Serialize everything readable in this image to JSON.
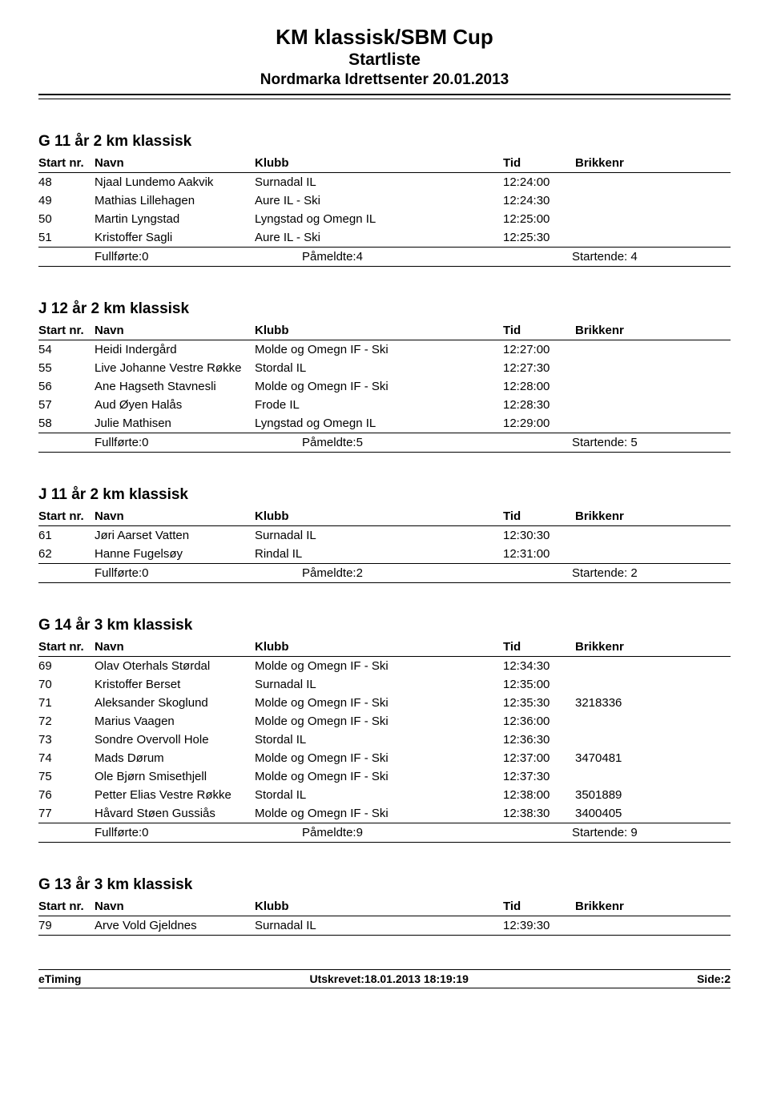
{
  "header": {
    "title1": "KM klassisk/SBM Cup",
    "title2": "Startliste",
    "title3": "Nordmarka Idrettsenter 20.01.2013"
  },
  "columns": {
    "start_nr": "Start nr.",
    "navn": "Navn",
    "klubb": "Klubb",
    "tid": "Tid",
    "brikkenr": "Brikkenr"
  },
  "summary_labels": {
    "fullforte": "Fullførte:",
    "pameldte": "Påmeldte:",
    "startende": "Startende:"
  },
  "sections": [
    {
      "title": "G 11 år 2 km klassisk",
      "rows": [
        {
          "nr": "48",
          "navn": "Njaal Lundemo Aakvik",
          "klubb": "Surnadal IL",
          "tid": "12:24:00",
          "brikkenr": ""
        },
        {
          "nr": "49",
          "navn": "Mathias Lillehagen",
          "klubb": "Aure IL - Ski",
          "tid": "12:24:30",
          "brikkenr": ""
        },
        {
          "nr": "50",
          "navn": "Martin Lyngstad",
          "klubb": "Lyngstad og Omegn IL",
          "tid": "12:25:00",
          "brikkenr": ""
        },
        {
          "nr": "51",
          "navn": "Kristoffer Sagli",
          "klubb": "Aure IL - Ski",
          "tid": "12:25:30",
          "brikkenr": ""
        }
      ],
      "summary": {
        "fullforte": "0",
        "pameldte": "4",
        "startende": "4"
      }
    },
    {
      "title": "J 12 år 2 km klassisk",
      "rows": [
        {
          "nr": "54",
          "navn": "Heidi Indergård",
          "klubb": "Molde og Omegn IF - Ski",
          "tid": "12:27:00",
          "brikkenr": ""
        },
        {
          "nr": "55",
          "navn": "Live Johanne Vestre Røkke",
          "klubb": "Stordal IL",
          "tid": "12:27:30",
          "brikkenr": ""
        },
        {
          "nr": "56",
          "navn": "Ane Hagseth Stavnesli",
          "klubb": "Molde og Omegn IF - Ski",
          "tid": "12:28:00",
          "brikkenr": ""
        },
        {
          "nr": "57",
          "navn": "Aud Øyen Halås",
          "klubb": "Frode IL",
          "tid": "12:28:30",
          "brikkenr": ""
        },
        {
          "nr": "58",
          "navn": "Julie Mathisen",
          "klubb": "Lyngstad og Omegn IL",
          "tid": "12:29:00",
          "brikkenr": ""
        }
      ],
      "summary": {
        "fullforte": "0",
        "pameldte": "5",
        "startende": "5"
      }
    },
    {
      "title": "J 11 år 2 km klassisk",
      "rows": [
        {
          "nr": "61",
          "navn": "Jøri Aarset Vatten",
          "klubb": "Surnadal IL",
          "tid": "12:30:30",
          "brikkenr": ""
        },
        {
          "nr": "62",
          "navn": "Hanne Fugelsøy",
          "klubb": "Rindal IL",
          "tid": "12:31:00",
          "brikkenr": ""
        }
      ],
      "summary": {
        "fullforte": "0",
        "pameldte": "2",
        "startende": "2"
      }
    },
    {
      "title": "G 14 år 3 km klassisk",
      "rows": [
        {
          "nr": "69",
          "navn": "Olav Oterhals Størdal",
          "klubb": "Molde og Omegn IF - Ski",
          "tid": "12:34:30",
          "brikkenr": ""
        },
        {
          "nr": "70",
          "navn": "Kristoffer Berset",
          "klubb": "Surnadal IL",
          "tid": "12:35:00",
          "brikkenr": ""
        },
        {
          "nr": "71",
          "navn": "Aleksander Skoglund",
          "klubb": "Molde og Omegn IF - Ski",
          "tid": "12:35:30",
          "brikkenr": "3218336"
        },
        {
          "nr": "72",
          "navn": "Marius Vaagen",
          "klubb": "Molde og Omegn IF - Ski",
          "tid": "12:36:00",
          "brikkenr": ""
        },
        {
          "nr": "73",
          "navn": "Sondre Overvoll Hole",
          "klubb": "Stordal IL",
          "tid": "12:36:30",
          "brikkenr": ""
        },
        {
          "nr": "74",
          "navn": "Mads Dørum",
          "klubb": "Molde og Omegn IF - Ski",
          "tid": "12:37:00",
          "brikkenr": "3470481"
        },
        {
          "nr": "75",
          "navn": "Ole Bjørn Smisethjell",
          "klubb": "Molde og Omegn IF - Ski",
          "tid": "12:37:30",
          "brikkenr": ""
        },
        {
          "nr": "76",
          "navn": "Petter Elias Vestre Røkke",
          "klubb": "Stordal IL",
          "tid": "12:38:00",
          "brikkenr": "3501889"
        },
        {
          "nr": "77",
          "navn": "Håvard Støen Gussiås",
          "klubb": "Molde og Omegn IF - Ski",
          "tid": "12:38:30",
          "brikkenr": "3400405"
        }
      ],
      "summary": {
        "fullforte": "0",
        "pameldte": "9",
        "startende": "9"
      }
    },
    {
      "title": "G 13 år 3 km klassisk",
      "rows": [
        {
          "nr": "79",
          "navn": "Arve Vold Gjeldnes",
          "klubb": "Surnadal IL",
          "tid": "12:39:30",
          "brikkenr": ""
        }
      ],
      "summary": null
    }
  ],
  "footer": {
    "left": "eTiming",
    "center": "Utskrevet:18.01.2013 18:19:19",
    "right": "Side:2"
  }
}
